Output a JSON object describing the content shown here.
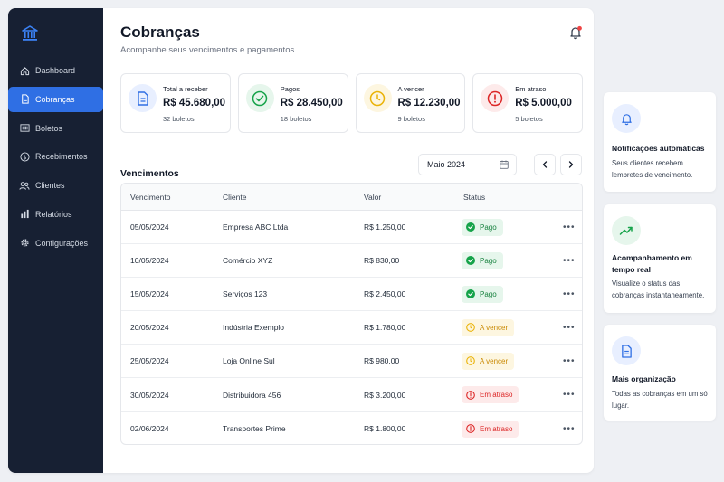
{
  "sidebar": {
    "logo_icon": "bank-icon",
    "items": [
      {
        "label": "Dashboard",
        "icon": "home-icon",
        "active": false
      },
      {
        "label": "Cobranças",
        "icon": "document-icon",
        "active": true
      },
      {
        "label": "Boletos",
        "icon": "barcode-icon",
        "active": false
      },
      {
        "label": "Recebimentos",
        "icon": "dollar-icon",
        "active": false
      },
      {
        "label": "Clientes",
        "icon": "users-icon",
        "active": false
      },
      {
        "label": "Relatórios",
        "icon": "chart-icon",
        "active": false
      },
      {
        "label": "Configurações",
        "icon": "gear-icon",
        "active": false
      }
    ]
  },
  "header": {
    "title": "Cobranças",
    "subtitle": "Acompanhe seus vencimentos e pagamentos"
  },
  "summary": [
    {
      "label": "Total a receber",
      "value": "R$ 45.680,00",
      "count": "32 boletos",
      "icon": "document-icon",
      "color": "#2f6fe4",
      "bg": "#e8efff"
    },
    {
      "label": "Pagos",
      "value": "R$ 28.450,00",
      "count": "18 boletos",
      "icon": "check-circle-icon",
      "color": "#16a34a",
      "bg": "#e6f6ec"
    },
    {
      "label": "A vencer",
      "value": "R$ 12.230,00",
      "count": "9 boletos",
      "icon": "clock-icon",
      "color": "#eab308",
      "bg": "#fdf6e0"
    },
    {
      "label": "Em atraso",
      "value": "R$ 5.000,00",
      "count": "5 boletos",
      "icon": "alert-circle-icon",
      "color": "#dc2626",
      "bg": "#fdeaea"
    }
  ],
  "vencimentos": {
    "title": "Vencimentos",
    "month": "Maio 2024",
    "columns": [
      "Vencimento",
      "Cliente",
      "Valor",
      "Status"
    ],
    "rows": [
      {
        "date": "05/05/2024",
        "client": "Empresa ABC Ltda",
        "value": "R$ 1.250,00",
        "status": "Pago",
        "kind": "paid"
      },
      {
        "date": "10/05/2024",
        "client": "Comércio XYZ",
        "value": "R$ 830,00",
        "status": "Pago",
        "kind": "paid"
      },
      {
        "date": "15/05/2024",
        "client": "Serviços 123",
        "value": "R$ 2.450,00",
        "status": "Pago",
        "kind": "paid"
      },
      {
        "date": "20/05/2024",
        "client": "Indústria Exemplo",
        "value": "R$ 1.780,00",
        "status": "A vencer",
        "kind": "due"
      },
      {
        "date": "25/05/2024",
        "client": "Loja Online Sul",
        "value": "R$ 980,00",
        "status": "A vencer",
        "kind": "due"
      },
      {
        "date": "30/05/2024",
        "client": "Distribuidora 456",
        "value": "R$ 3.200,00",
        "status": "Em atraso",
        "kind": "late"
      },
      {
        "date": "02/06/2024",
        "client": "Transportes Prime",
        "value": "R$ 1.800,00",
        "status": "Em atraso",
        "kind": "late"
      }
    ]
  },
  "features": [
    {
      "title": "Notificações automáticas",
      "desc": "Seus clientes recebem lembretes de vencimento.",
      "icon": "bell-icon"
    },
    {
      "title": "Acompanhamento em tempo real",
      "desc": "Visualize o status das cobranças instantaneamente.",
      "icon": "trend-up-icon"
    },
    {
      "title": "Mais organização",
      "desc": "Todas as cobranças em um só lugar.",
      "icon": "document-icon"
    }
  ],
  "colors": {
    "sidebar_bg": "#172033",
    "accent": "#2f6fe4",
    "paid": "#16a34a",
    "due": "#eab308",
    "late": "#dc2626"
  }
}
